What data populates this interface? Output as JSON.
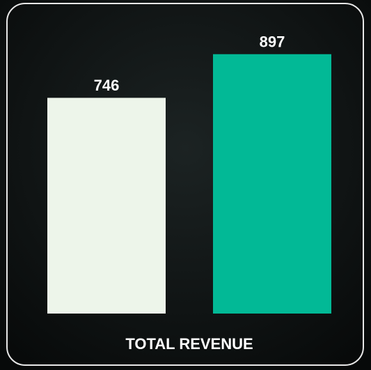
{
  "chart_data": {
    "type": "bar",
    "title": "TOTAL REVENUE",
    "categories": [
      null,
      null
    ],
    "values": [
      746,
      897
    ],
    "colors": [
      "#edf5ea",
      "#02b996"
    ],
    "ylim": [
      0,
      1000
    ]
  }
}
